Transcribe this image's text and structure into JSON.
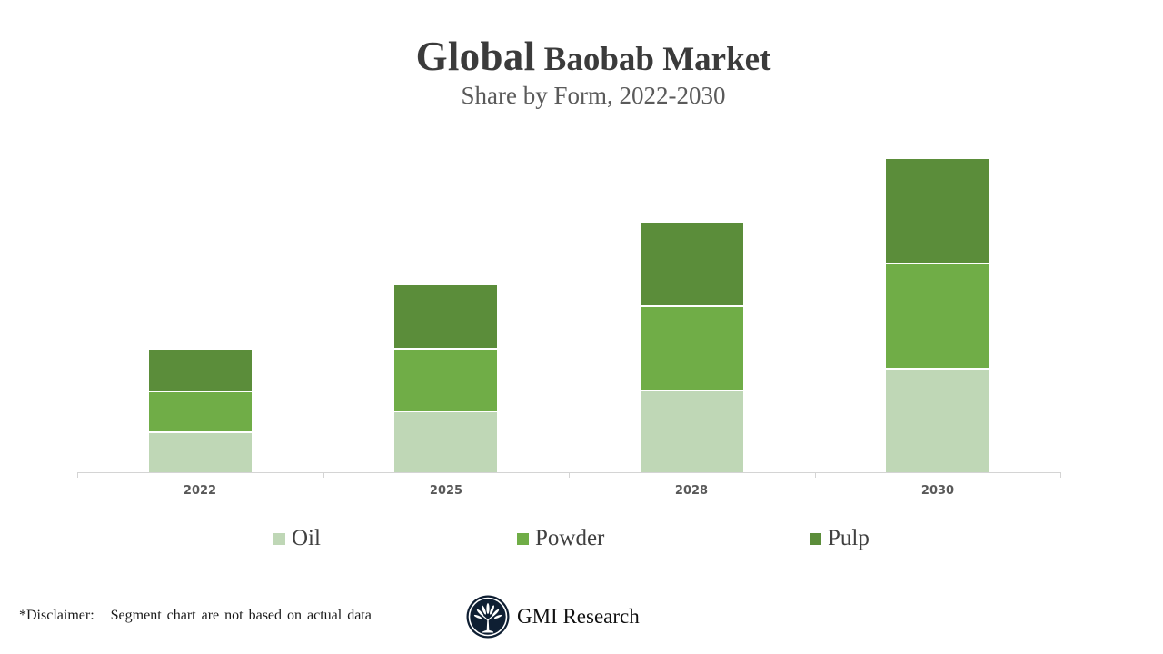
{
  "header": {
    "title_first": "Global",
    "title_rest": " Baobab Market",
    "subtitle": "Share by Form, 2022-2030"
  },
  "colors": {
    "oil": "#bfd7b6",
    "powder": "#70ad47",
    "pulp": "#5b8d3a",
    "axis": "#d4d4d4",
    "title": "#3b3b3b"
  },
  "legend": [
    {
      "label": "Oil",
      "color": "#bfd7b6"
    },
    {
      "label": "Powder",
      "color": "#70ad47"
    },
    {
      "label": "Pulp",
      "color": "#5b8d3a"
    }
  ],
  "footer": {
    "disclaimer": "*Disclaimer:   Segment chart are not based on actual data",
    "brand": "GMI Research",
    "logo_icon": "baobab-tree-circle-logo"
  },
  "chart_data": {
    "type": "bar",
    "stacked": true,
    "title": "Global Baobab Market",
    "subtitle": "Share by Form, 2022-2030",
    "xlabel": "",
    "ylabel": "",
    "categories": [
      "2022",
      "2025",
      "2028",
      "2030"
    ],
    "series": [
      {
        "name": "Oil",
        "color": "#bfd7b6",
        "values": [
          45,
          68,
          91,
          115
        ]
      },
      {
        "name": "Powder",
        "color": "#70ad47",
        "values": [
          45,
          69,
          93,
          116
        ]
      },
      {
        "name": "Pulp",
        "color": "#5b8d3a",
        "values": [
          45,
          69,
          91,
          114
        ]
      }
    ],
    "units_note": "relative units (no value axis shown)",
    "ylim": [
      0,
      371
    ],
    "grid": false,
    "legend_position": "bottom"
  }
}
